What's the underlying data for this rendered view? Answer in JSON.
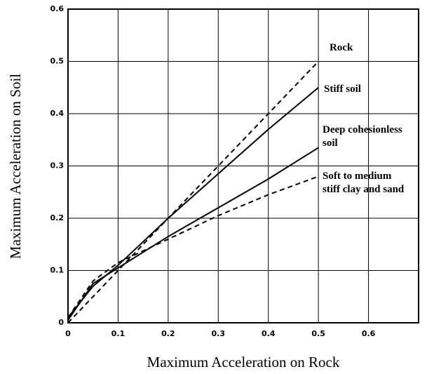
{
  "chart_data": {
    "type": "line",
    "xlabel": "Maximum Acceleration on Rock",
    "ylabel": "Maximum Acceleration on Soil",
    "x": [
      0,
      0.05,
      0.1,
      0.2,
      0.3,
      0.4,
      0.5
    ],
    "series": [
      {
        "name": "Rock",
        "color": "#000000",
        "dashed": true,
        "values": [
          0,
          0.05,
          0.1,
          0.2,
          0.3,
          0.4,
          0.5
        ]
      },
      {
        "name": "Stiff soil",
        "color": "#000000",
        "dashed": false,
        "values": [
          0.01,
          0.07,
          0.11,
          0.2,
          0.285,
          0.37,
          0.45
        ]
      },
      {
        "name": "Deep cohesionless\nsoil",
        "color": "#000000",
        "dashed": false,
        "values": [
          0.005,
          0.075,
          0.105,
          0.165,
          0.22,
          0.275,
          0.335
        ]
      },
      {
        "name": "Soft to medium\nstiff clay and sand",
        "color": "#000000",
        "dashed": true,
        "values": [
          0.01,
          0.08,
          0.115,
          0.16,
          0.205,
          0.245,
          0.28
        ]
      }
    ],
    "xlim": [
      0,
      0.7
    ],
    "ylim": [
      0,
      0.6
    ],
    "xticks": [
      0,
      0.1,
      0.2,
      0.3,
      0.4,
      0.5,
      0.6
    ],
    "yticks": [
      0,
      0.1,
      0.2,
      0.3,
      0.4,
      0.5,
      0.6
    ],
    "grid": true
  }
}
